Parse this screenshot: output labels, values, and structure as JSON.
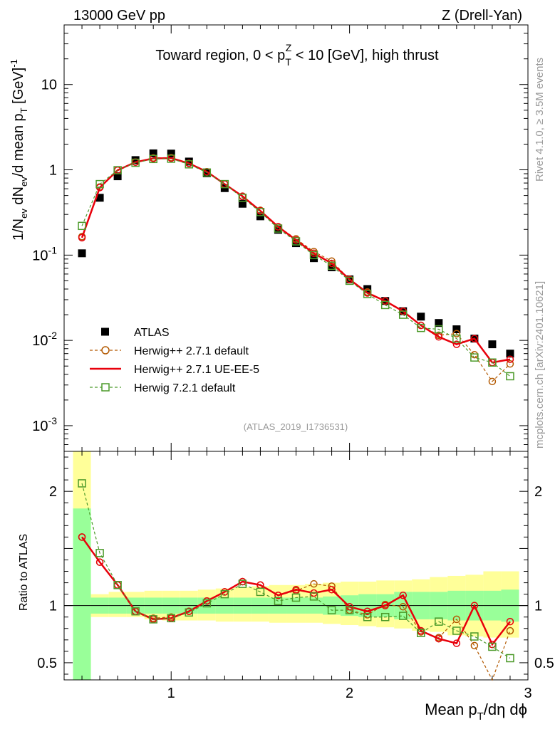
{
  "header": {
    "left": "13000 GeV pp",
    "right": "Z (Drell-Yan)"
  },
  "side_labels": {
    "rivet": "Rivet 4.1.0, ≥ 3.5M events",
    "mcplots": "mcplots.cern.ch [arXiv:2401.10621]"
  },
  "chart_data": {
    "type": "scatter",
    "title": "Toward region, 0 < p_T^Z < 10 [GeV], high thrust",
    "title_parts": {
      "a": "Toward region, 0 < p",
      "sub": "T",
      "sup": "Z",
      "b": " < 10 [GeV], high thrust"
    },
    "analysis_label": "(ATLAS_2019_I1736531)",
    "xlabel": "Mean p_T/dη dϕ",
    "xlabel_parts": {
      "a": "Mean p",
      "sub": "T",
      "b": "/dη dϕ"
    },
    "ylabel": "1/N_ev dN_ev/d mean p_T [GeV]^-1",
    "ylabel_parts": {
      "a": "1/N",
      "sub1": "ev",
      "b": " dN",
      "sub2": "ev",
      "c": "/d mean p",
      "sub3": "T",
      "d": " [GeV]",
      "sup": "-1"
    },
    "ratio_ylabel": "Ratio to ATLAS",
    "xlim": [
      0.4,
      3.0
    ],
    "ylim": [
      0.0005,
      50
    ],
    "ratio_ylim": [
      0.35,
      2.35
    ],
    "yscale": "log",
    "x_ticks": [
      {
        "v": 1,
        "t": "1"
      },
      {
        "v": 2,
        "t": "2"
      },
      {
        "v": 3,
        "t": "3"
      }
    ],
    "y_ticks": [
      {
        "v": 0.001,
        "base": "10",
        "exp": "-3"
      },
      {
        "v": 0.01,
        "base": "10",
        "exp": "-2"
      },
      {
        "v": 0.1,
        "base": "10",
        "exp": "-1"
      },
      {
        "v": 1,
        "base": "1",
        "exp": ""
      },
      {
        "v": 10,
        "base": "10",
        "exp": ""
      }
    ],
    "ratio_ticks": [
      {
        "v": 0.5,
        "t": "0.5"
      },
      {
        "v": 1,
        "t": "1"
      },
      {
        "v": 2,
        "t": "2"
      }
    ],
    "x": [
      0.5,
      0.6,
      0.7,
      0.8,
      0.9,
      1.0,
      1.1,
      1.2,
      1.3,
      1.4,
      1.5,
      1.6,
      1.7,
      1.8,
      1.9,
      2.0,
      2.1,
      2.2,
      2.3,
      2.4,
      2.5,
      2.6,
      2.7,
      2.8,
      2.9
    ],
    "band_edges": [
      0.45,
      0.55,
      0.65,
      0.75,
      0.85,
      0.95,
      1.05,
      1.15,
      1.25,
      1.35,
      1.45,
      1.55,
      1.65,
      1.75,
      1.85,
      1.95,
      2.05,
      2.15,
      2.25,
      2.35,
      2.45,
      2.55,
      2.65,
      2.75,
      2.85,
      2.95
    ],
    "data_band_green": [
      [
        0.3,
        1.85
      ],
      [
        0.93,
        1.07
      ],
      [
        0.93,
        1.07
      ],
      [
        0.93,
        1.07
      ],
      [
        0.93,
        1.07
      ],
      [
        0.93,
        1.07
      ],
      [
        0.93,
        1.07
      ],
      [
        0.93,
        1.07
      ],
      [
        0.93,
        1.07
      ],
      [
        0.93,
        1.07
      ],
      [
        0.93,
        1.07
      ],
      [
        0.93,
        1.07
      ],
      [
        0.93,
        1.07
      ],
      [
        0.93,
        1.07
      ],
      [
        0.92,
        1.08
      ],
      [
        0.91,
        1.09
      ],
      [
        0.9,
        1.1
      ],
      [
        0.9,
        1.1
      ],
      [
        0.88,
        1.12
      ],
      [
        0.88,
        1.12
      ],
      [
        0.88,
        1.12
      ],
      [
        0.87,
        1.13
      ],
      [
        0.87,
        1.13
      ],
      [
        0.87,
        1.13
      ],
      [
        0.86,
        1.14
      ]
    ],
    "data_band_yellow": [
      [
        0.3,
        2.35
      ],
      [
        0.9,
        1.1
      ],
      [
        0.9,
        1.12
      ],
      [
        0.9,
        1.12
      ],
      [
        0.88,
        1.13
      ],
      [
        0.87,
        1.13
      ],
      [
        0.87,
        1.13
      ],
      [
        0.87,
        1.14
      ],
      [
        0.86,
        1.15
      ],
      [
        0.86,
        1.16
      ],
      [
        0.86,
        1.17
      ],
      [
        0.85,
        1.18
      ],
      [
        0.85,
        1.18
      ],
      [
        0.85,
        1.19
      ],
      [
        0.84,
        1.2
      ],
      [
        0.83,
        1.21
      ],
      [
        0.82,
        1.21
      ],
      [
        0.81,
        1.22
      ],
      [
        0.8,
        1.22
      ],
      [
        0.78,
        1.23
      ],
      [
        0.77,
        1.25
      ],
      [
        0.74,
        1.26
      ],
      [
        0.73,
        1.27
      ],
      [
        0.72,
        1.3
      ],
      [
        0.72,
        1.3
      ]
    ],
    "series": [
      {
        "name": "ATLAS",
        "style": "data",
        "color": "#000000",
        "values": [
          0.105,
          0.47,
          0.84,
          1.3,
          1.56,
          1.55,
          1.25,
          0.91,
          0.61,
          0.4,
          0.285,
          0.198,
          0.138,
          0.092,
          0.072,
          0.052,
          0.04,
          0.029,
          0.022,
          0.019,
          0.016,
          0.0135,
          0.0105,
          0.009,
          0.007
        ]
      },
      {
        "name": "Herwig++ 2.7.1 default",
        "style": "circle-dashed",
        "color": "#b35900",
        "values": [
          0.165,
          0.63,
          0.99,
          1.23,
          1.38,
          1.39,
          1.19,
          0.95,
          0.68,
          0.49,
          0.335,
          0.215,
          0.155,
          0.11,
          0.085,
          0.052,
          0.037,
          0.029,
          0.022,
          0.015,
          0.0115,
          0.012,
          0.0068,
          0.0033,
          0.0053
        ],
        "ratio": [
          1.6,
          1.38,
          1.18,
          0.95,
          0.89,
          0.9,
          0.95,
          1.04,
          1.12,
          1.21,
          1.18,
          1.09,
          1.13,
          1.19,
          1.17,
          0.96,
          0.92,
          1.01,
          0.99,
          0.77,
          0.72,
          0.88,
          0.65,
          0.33,
          0.78
        ]
      },
      {
        "name": "Herwig++ 2.7.1 UE-EE-5",
        "style": "solid",
        "color": "#e8000b",
        "values": [
          0.16,
          0.62,
          0.99,
          1.23,
          1.36,
          1.37,
          1.19,
          0.95,
          0.68,
          0.49,
          0.33,
          0.215,
          0.15,
          0.105,
          0.08,
          0.052,
          0.036,
          0.029,
          0.022,
          0.015,
          0.011,
          0.009,
          0.0105,
          0.0055,
          0.006
        ],
        "ratio": [
          1.6,
          1.38,
          1.18,
          0.95,
          0.88,
          0.89,
          0.95,
          1.04,
          1.12,
          1.21,
          1.18,
          1.09,
          1.14,
          1.11,
          1.14,
          0.99,
          0.95,
          1.0,
          1.09,
          0.78,
          0.71,
          0.67,
          1.0,
          0.66,
          0.86
        ]
      },
      {
        "name": "Herwig 7.2.1 default",
        "style": "square-dashed",
        "color": "#4c9a2a",
        "values": [
          0.22,
          0.68,
          0.99,
          1.21,
          1.34,
          1.35,
          1.16,
          0.93,
          0.68,
          0.47,
          0.32,
          0.205,
          0.145,
          0.1,
          0.075,
          0.05,
          0.035,
          0.026,
          0.02,
          0.014,
          0.0135,
          0.0105,
          0.0063,
          0.0055,
          0.0038
        ],
        "ratio": [
          2.07,
          1.46,
          1.18,
          0.95,
          0.88,
          0.89,
          0.94,
          1.02,
          1.1,
          1.19,
          1.12,
          1.04,
          1.07,
          1.08,
          0.96,
          0.96,
          0.9,
          0.9,
          0.91,
          0.76,
          0.86,
          0.78,
          0.73,
          0.64,
          0.54
        ]
      }
    ]
  }
}
